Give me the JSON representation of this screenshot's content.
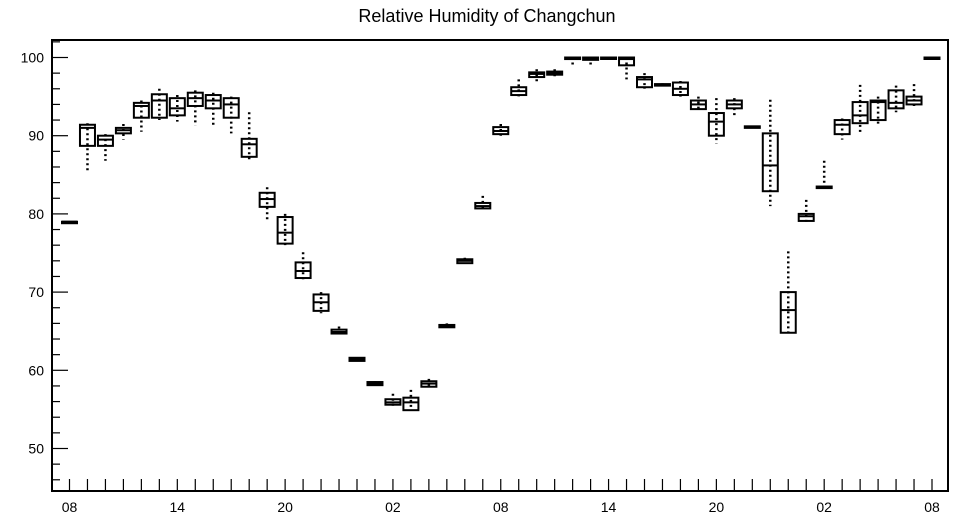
{
  "chart_data": {
    "type": "box",
    "title": "Relative Humidity of Changchun",
    "xlabel": "",
    "ylabel": "",
    "xlim": [
      0,
      49
    ],
    "ylim": [
      45,
      102
    ],
    "y_ticks": [
      50,
      60,
      70,
      80,
      90,
      100
    ],
    "x_ticks": [
      {
        "x": 1,
        "label": "08"
      },
      {
        "x": 7,
        "label": "14"
      },
      {
        "x": 13,
        "label": "20"
      },
      {
        "x": 19,
        "label": "02"
      },
      {
        "x": 25,
        "label": "08"
      },
      {
        "x": 31,
        "label": "14"
      },
      {
        "x": 37,
        "label": "20"
      },
      {
        "x": 43,
        "label": "02"
      },
      {
        "x": 49,
        "label": "08"
      }
    ],
    "grid": false,
    "boxes": [
      {
        "x": 1,
        "min": 79.0,
        "q1": 79.0,
        "median": 79.0,
        "q3": 79.0,
        "max": 79.0
      },
      {
        "x": 2,
        "min": 85.5,
        "q1": 88.7,
        "median": 91.0,
        "q3": 91.4,
        "max": 91.6
      },
      {
        "x": 3,
        "min": 86.8,
        "q1": 88.7,
        "median": 89.5,
        "q3": 90.0,
        "max": 90.2
      },
      {
        "x": 4,
        "min": 89.5,
        "q1": 90.3,
        "median": 90.7,
        "q3": 91.0,
        "max": 91.5
      },
      {
        "x": 5,
        "min": 90.5,
        "q1": 92.3,
        "median": 93.8,
        "q3": 94.2,
        "max": 94.5
      },
      {
        "x": 6,
        "min": 92.0,
        "q1": 92.3,
        "median": 94.5,
        "q3": 95.3,
        "max": 96.0
      },
      {
        "x": 7,
        "min": 91.8,
        "q1": 92.6,
        "median": 93.5,
        "q3": 94.8,
        "max": 95.2
      },
      {
        "x": 8,
        "min": 91.3,
        "q1": 93.8,
        "median": 94.8,
        "q3": 95.5,
        "max": 95.8
      },
      {
        "x": 9,
        "min": 91.1,
        "q1": 93.5,
        "median": 94.5,
        "q3": 95.2,
        "max": 95.5
      },
      {
        "x": 10,
        "min": 90.3,
        "q1": 92.3,
        "median": 94.0,
        "q3": 94.8,
        "max": 95.0
      },
      {
        "x": 11,
        "min": 86.8,
        "q1": 87.3,
        "median": 88.9,
        "q3": 89.6,
        "max": 93.0
      },
      {
        "x": 12,
        "min": 79.3,
        "q1": 80.9,
        "median": 81.9,
        "q3": 82.7,
        "max": 83.4
      },
      {
        "x": 13,
        "min": 76.0,
        "q1": 76.2,
        "median": 77.6,
        "q3": 79.6,
        "max": 80.0
      },
      {
        "x": 14,
        "min": 71.6,
        "q1": 71.8,
        "median": 72.7,
        "q3": 73.8,
        "max": 75.1
      },
      {
        "x": 15,
        "min": 67.3,
        "q1": 67.6,
        "median": 68.7,
        "q3": 69.7,
        "max": 70.0
      },
      {
        "x": 16,
        "min": 64.5,
        "q1": 64.7,
        "median": 64.9,
        "q3": 65.2,
        "max": 65.6
      },
      {
        "x": 17,
        "min": 61.1,
        "q1": 61.2,
        "median": 61.4,
        "q3": 61.6,
        "max": 61.7
      },
      {
        "x": 18,
        "min": 58.0,
        "q1": 58.1,
        "median": 58.3,
        "q3": 58.5,
        "max": 58.6
      },
      {
        "x": 19,
        "min": 55.2,
        "q1": 55.6,
        "median": 55.9,
        "q3": 56.3,
        "max": 57.0
      },
      {
        "x": 20,
        "min": 54.8,
        "q1": 54.9,
        "median": 55.9,
        "q3": 56.5,
        "max": 57.5
      },
      {
        "x": 21,
        "min": 57.8,
        "q1": 57.9,
        "median": 58.3,
        "q3": 58.6,
        "max": 58.9
      },
      {
        "x": 22,
        "min": 65.4,
        "q1": 65.5,
        "median": 65.6,
        "q3": 65.8,
        "max": 66.0
      },
      {
        "x": 23,
        "min": 73.6,
        "q1": 73.7,
        "median": 74.0,
        "q3": 74.2,
        "max": 74.4
      },
      {
        "x": 24,
        "min": 80.5,
        "q1": 80.7,
        "median": 81.0,
        "q3": 81.4,
        "max": 82.3
      },
      {
        "x": 25,
        "min": 90.0,
        "q1": 90.2,
        "median": 90.6,
        "q3": 91.1,
        "max": 91.5
      },
      {
        "x": 26,
        "min": 94.8,
        "q1": 95.2,
        "median": 95.7,
        "q3": 96.2,
        "max": 97.2
      },
      {
        "x": 27,
        "min": 96.9,
        "q1": 97.5,
        "median": 97.9,
        "q3": 98.1,
        "max": 98.5
      },
      {
        "x": 28,
        "min": 97.6,
        "q1": 97.8,
        "median": 98.0,
        "q3": 98.2,
        "max": 98.5
      },
      {
        "x": 29,
        "min": 99.0,
        "q1": 99.8,
        "median": 99.9,
        "q3": 100.0,
        "max": 100.0
      },
      {
        "x": 30,
        "min": 99.0,
        "q1": 99.7,
        "median": 99.9,
        "q3": 100.0,
        "max": 100.0
      },
      {
        "x": 31,
        "min": 100.0,
        "q1": 100.0,
        "median": 100.0,
        "q3": 100.0,
        "max": 100.0
      },
      {
        "x": 32,
        "min": 97.2,
        "q1": 99.0,
        "median": 99.8,
        "q3": 100.0,
        "max": 100.0
      },
      {
        "x": 33,
        "min": 96.0,
        "q1": 96.2,
        "median": 97.2,
        "q3": 97.5,
        "max": 98.0
      },
      {
        "x": 34,
        "min": 96.3,
        "q1": 96.4,
        "median": 96.5,
        "q3": 96.6,
        "max": 96.7
      },
      {
        "x": 35,
        "min": 95.0,
        "q1": 95.2,
        "median": 96.0,
        "q3": 96.8,
        "max": 97.0
      },
      {
        "x": 36,
        "min": 93.2,
        "q1": 93.4,
        "median": 94.0,
        "q3": 94.5,
        "max": 95.0
      },
      {
        "x": 37,
        "min": 89.0,
        "q1": 90.0,
        "median": 91.8,
        "q3": 92.9,
        "max": 94.8
      },
      {
        "x": 38,
        "min": 92.4,
        "q1": 93.5,
        "median": 94.0,
        "q3": 94.5,
        "max": 94.8
      },
      {
        "x": 39,
        "min": 90.9,
        "q1": 91.0,
        "median": 91.1,
        "q3": 91.2,
        "max": 91.3
      },
      {
        "x": 40,
        "min": 81.0,
        "q1": 82.9,
        "median": 86.2,
        "q3": 90.3,
        "max": 94.6
      },
      {
        "x": 41,
        "min": 64.7,
        "q1": 64.8,
        "median": 67.7,
        "q3": 70.0,
        "max": 75.2
      },
      {
        "x": 42,
        "min": 79.0,
        "q1": 79.1,
        "median": 79.7,
        "q3": 80.0,
        "max": 81.8
      },
      {
        "x": 43,
        "min": 83.2,
        "q1": 83.3,
        "median": 83.4,
        "q3": 83.5,
        "max": 86.8
      },
      {
        "x": 44,
        "min": 89.5,
        "q1": 90.2,
        "median": 91.4,
        "q3": 92.0,
        "max": 92.2
      },
      {
        "x": 45,
        "min": 90.2,
        "q1": 91.6,
        "median": 92.6,
        "q3": 94.3,
        "max": 96.5
      },
      {
        "x": 46,
        "min": 91.5,
        "q1": 92.0,
        "median": 94.3,
        "q3": 94.5,
        "max": 95.0
      },
      {
        "x": 47,
        "min": 93.0,
        "q1": 93.5,
        "median": 94.2,
        "q3": 95.8,
        "max": 96.4
      },
      {
        "x": 48,
        "min": 93.8,
        "q1": 94.0,
        "median": 94.5,
        "q3": 95.0,
        "max": 96.6
      },
      {
        "x": 49,
        "min": 100.0,
        "q1": 100.0,
        "median": 100.0,
        "q3": 100.0,
        "max": 100.0
      }
    ]
  }
}
